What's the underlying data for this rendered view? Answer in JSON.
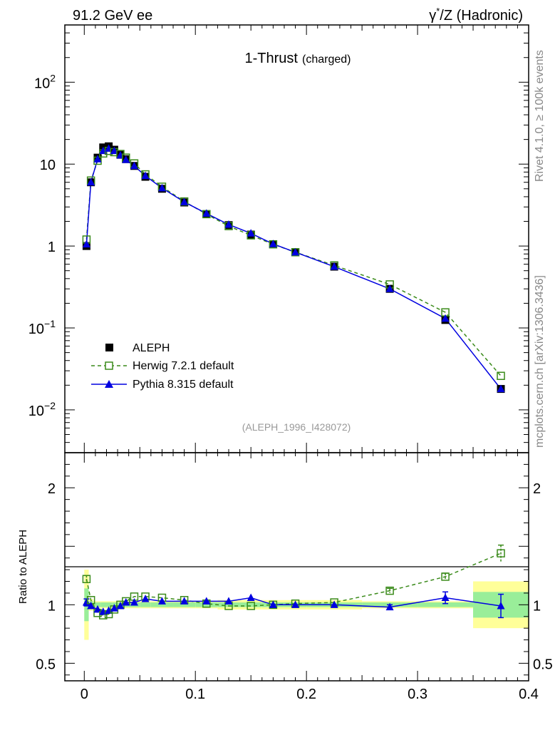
{
  "header": {
    "left": "91.2 GeV ee",
    "right_sym": "γ",
    "right_sup": "*",
    "right_rest": "/Z (Hadronic)"
  },
  "sidebar": {
    "rivet": "Rivet 4.1.0, ≥ 100k events",
    "mcplots": "mcplots.cern.ch [arXiv:1306.3436]"
  },
  "chart_data": [
    {
      "type": "line",
      "scale": "log",
      "title": "1-Thrust",
      "title_sub": "(charged)",
      "watermark": "(ALEPH_1996_I428072)",
      "xlabel": "",
      "ylabel": "",
      "xlim": [
        -0.0175,
        0.4
      ],
      "ylim": [
        0.003,
        500
      ],
      "y_ticks": [
        {
          "v": 0.01,
          "base": "10",
          "exp": "−2"
        },
        {
          "v": 0.1,
          "base": "10",
          "exp": "−1"
        },
        {
          "v": 1,
          "base": "1",
          "exp": ""
        },
        {
          "v": 10,
          "base": "10",
          "exp": ""
        },
        {
          "v": 100,
          "base": "10",
          "exp": "2"
        }
      ],
      "legend": [
        {
          "name": "ALEPH",
          "style": "square",
          "color": "#000000"
        },
        {
          "name": "Herwig 7.2.1 default",
          "style": "open-square-dashed",
          "color": "#3a8a1a"
        },
        {
          "name": "Pythia 8.315 default",
          "style": "triangle-solid",
          "color": "#0000e0"
        }
      ],
      "x": [
        0.002,
        0.006,
        0.012,
        0.017,
        0.022,
        0.027,
        0.0325,
        0.0375,
        0.045,
        0.055,
        0.07,
        0.09,
        0.11,
        0.13,
        0.15,
        0.17,
        0.19,
        0.225,
        0.275,
        0.325,
        0.375
      ],
      "series": [
        {
          "name": "ALEPH",
          "values": [
            1.0,
            6.0,
            12.0,
            16.0,
            16.5,
            15.0,
            13.0,
            11.5,
            9.5,
            7.0,
            5.0,
            3.4,
            2.45,
            1.8,
            1.38,
            1.05,
            0.84,
            0.56,
            0.3,
            0.125,
            0.018
          ]
        },
        {
          "name": "Herwig 7.2.1 default",
          "values": [
            1.2,
            6.3,
            11.0,
            13.5,
            14.5,
            14.0,
            13.3,
            12.0,
            10.2,
            7.5,
            5.3,
            3.5,
            2.45,
            1.75,
            1.35,
            1.05,
            0.84,
            0.58,
            0.34,
            0.155,
            0.026
          ]
        },
        {
          "name": "Pythia 8.315 default",
          "values": [
            1.05,
            6.0,
            11.5,
            14.5,
            15.5,
            14.5,
            12.8,
            11.3,
            9.5,
            7.2,
            5.1,
            3.45,
            2.5,
            1.83,
            1.43,
            1.06,
            0.84,
            0.56,
            0.3,
            0.13,
            0.018
          ]
        }
      ]
    },
    {
      "type": "line",
      "scale": "linear",
      "xlabel": "",
      "ylabel": "Ratio to ALEPH",
      "xlim": [
        -0.0175,
        0.4
      ],
      "ylim": [
        0.35,
        2.3
      ],
      "y_ticks": [
        {
          "v": 0.5,
          "label": "0.5"
        },
        {
          "v": 1,
          "label": "1"
        },
        {
          "v": 2,
          "label": "2"
        }
      ],
      "x_ticks": [
        {
          "v": 0,
          "label": "0"
        },
        {
          "v": 0.1,
          "label": "0.1"
        },
        {
          "v": 0.2,
          "label": "0.2"
        },
        {
          "v": 0.3,
          "label": "0.3"
        },
        {
          "v": 0.4,
          "label": "0.4"
        }
      ],
      "bins": [
        [
          0,
          0.004
        ],
        [
          0.004,
          0.008
        ],
        [
          0.008,
          0.015
        ],
        [
          0.015,
          0.02
        ],
        [
          0.02,
          0.025
        ],
        [
          0.025,
          0.03
        ],
        [
          0.03,
          0.035
        ],
        [
          0.035,
          0.04
        ],
        [
          0.04,
          0.05
        ],
        [
          0.05,
          0.06
        ],
        [
          0.06,
          0.08
        ],
        [
          0.08,
          0.1
        ],
        [
          0.1,
          0.12
        ],
        [
          0.12,
          0.14
        ],
        [
          0.14,
          0.16
        ],
        [
          0.16,
          0.18
        ],
        [
          0.18,
          0.2
        ],
        [
          0.2,
          0.25
        ],
        [
          0.25,
          0.3
        ],
        [
          0.3,
          0.35
        ],
        [
          0.35,
          0.4
        ]
      ],
      "band_stat": [
        0.14,
        0.03,
        0.02,
        0.02,
        0.02,
        0.02,
        0.02,
        0.02,
        0.02,
        0.02,
        0.02,
        0.02,
        0.02,
        0.02,
        0.02,
        0.02,
        0.02,
        0.02,
        0.02,
        0.02,
        0.11
      ],
      "band_total": [
        0.3,
        0.05,
        0.03,
        0.03,
        0.03,
        0.03,
        0.03,
        0.03,
        0.03,
        0.03,
        0.03,
        0.03,
        0.03,
        0.04,
        0.04,
        0.04,
        0.04,
        0.04,
        0.03,
        0.03,
        0.2
      ],
      "x": [
        0.002,
        0.006,
        0.012,
        0.017,
        0.022,
        0.027,
        0.0325,
        0.0375,
        0.045,
        0.055,
        0.07,
        0.09,
        0.11,
        0.13,
        0.15,
        0.17,
        0.19,
        0.225,
        0.275,
        0.325,
        0.375
      ],
      "series": [
        {
          "name": "Herwig 7.2.1 default",
          "values": [
            1.22,
            1.04,
            0.93,
            0.91,
            0.92,
            0.96,
            1.0,
            1.03,
            1.07,
            1.07,
            1.06,
            1.04,
            1.01,
            0.99,
            0.99,
            1.0,
            1.01,
            1.02,
            1.12,
            1.24,
            1.44
          ],
          "errors": [
            0.03,
            0.01,
            0.01,
            0.01,
            0.01,
            0.01,
            0.01,
            0.01,
            0.01,
            0.01,
            0.01,
            0.01,
            0.01,
            0.01,
            0.01,
            0.01,
            0.01,
            0.01,
            0.02,
            0.03,
            0.07
          ]
        },
        {
          "name": "Pythia 8.315 default",
          "values": [
            1.02,
            0.99,
            0.96,
            0.94,
            0.95,
            0.97,
            0.99,
            1.02,
            1.02,
            1.05,
            1.03,
            1.03,
            1.03,
            1.03,
            1.06,
            1.0,
            1.0,
            1.0,
            0.98,
            1.06,
            0.99
          ],
          "errors": [
            0.03,
            0.01,
            0.01,
            0.01,
            0.01,
            0.01,
            0.01,
            0.01,
            0.01,
            0.01,
            0.01,
            0.01,
            0.01,
            0.01,
            0.01,
            0.01,
            0.01,
            0.01,
            0.02,
            0.05,
            0.1
          ]
        }
      ]
    }
  ],
  "colors": {
    "aleph": "#000000",
    "herwig": "#3a8a1a",
    "pythia": "#0000e0",
    "band_total": "#ffff99",
    "band_stat": "#99ee99",
    "watermark": "#999999",
    "sidebar_text": "#888888"
  }
}
